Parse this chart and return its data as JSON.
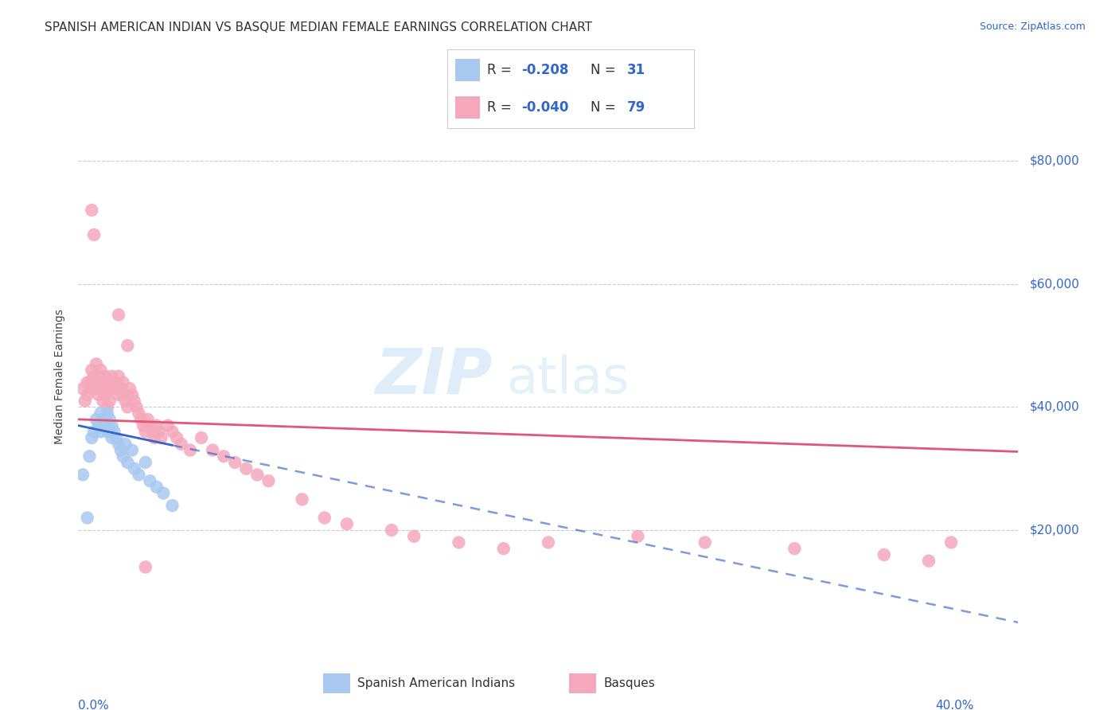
{
  "title": "SPANISH AMERICAN INDIAN VS BASQUE MEDIAN FEMALE EARNINGS CORRELATION CHART",
  "source": "Source: ZipAtlas.com",
  "ylabel": "Median Female Earnings",
  "yaxis_labels": [
    "$80,000",
    "$60,000",
    "$40,000",
    "$20,000"
  ],
  "yaxis_values": [
    80000,
    60000,
    40000,
    20000
  ],
  "xlim": [
    0.0,
    0.42
  ],
  "ylim": [
    0,
    90000
  ],
  "watermark_zip": "ZIP",
  "watermark_atlas": "atlas",
  "legend_r1_label": "R = ",
  "legend_r1_val": "-0.208",
  "legend_n1_label": "N = ",
  "legend_n1_val": "31",
  "legend_r2_label": "R = ",
  "legend_r2_val": "-0.040",
  "legend_n2_label": "N = ",
  "legend_n2_val": "79",
  "xtick_left_label": "0.0%",
  "xtick_right_label": "40.0%",
  "bottom_label1": "Spanish American Indians",
  "bottom_label2": "Basques",
  "blue_scatter_x": [
    0.002,
    0.004,
    0.005,
    0.006,
    0.007,
    0.008,
    0.009,
    0.01,
    0.01,
    0.011,
    0.012,
    0.013,
    0.013,
    0.014,
    0.015,
    0.015,
    0.016,
    0.017,
    0.018,
    0.019,
    0.02,
    0.021,
    0.022,
    0.024,
    0.025,
    0.027,
    0.03,
    0.032,
    0.035,
    0.038,
    0.042
  ],
  "blue_scatter_y": [
    29000,
    22000,
    32000,
    35000,
    36000,
    38000,
    37000,
    39000,
    36000,
    38000,
    37000,
    39000,
    36000,
    38000,
    37000,
    35000,
    36000,
    35000,
    34000,
    33000,
    32000,
    34000,
    31000,
    33000,
    30000,
    29000,
    31000,
    28000,
    27000,
    26000,
    24000
  ],
  "pink_scatter_x": [
    0.002,
    0.003,
    0.004,
    0.004,
    0.005,
    0.006,
    0.006,
    0.007,
    0.008,
    0.008,
    0.009,
    0.009,
    0.01,
    0.01,
    0.011,
    0.011,
    0.012,
    0.012,
    0.013,
    0.013,
    0.014,
    0.014,
    0.015,
    0.015,
    0.016,
    0.017,
    0.018,
    0.018,
    0.019,
    0.02,
    0.02,
    0.021,
    0.022,
    0.023,
    0.024,
    0.025,
    0.026,
    0.027,
    0.028,
    0.029,
    0.03,
    0.031,
    0.032,
    0.033,
    0.034,
    0.035,
    0.036,
    0.037,
    0.04,
    0.042,
    0.044,
    0.046,
    0.05,
    0.055,
    0.06,
    0.065,
    0.07,
    0.075,
    0.08,
    0.085,
    0.1,
    0.11,
    0.12,
    0.14,
    0.15,
    0.17,
    0.19,
    0.21,
    0.25,
    0.28,
    0.32,
    0.36,
    0.38,
    0.39,
    0.006,
    0.007,
    0.018,
    0.022,
    0.03
  ],
  "pink_scatter_y": [
    43000,
    41000,
    44000,
    42000,
    44000,
    43000,
    46000,
    45000,
    47000,
    43000,
    45000,
    42000,
    46000,
    44000,
    43000,
    41000,
    45000,
    42000,
    44000,
    40000,
    43000,
    41000,
    45000,
    43000,
    44000,
    43000,
    42000,
    45000,
    43000,
    44000,
    42000,
    41000,
    40000,
    43000,
    42000,
    41000,
    40000,
    39000,
    38000,
    37000,
    36000,
    38000,
    37000,
    36000,
    35000,
    37000,
    36000,
    35000,
    37000,
    36000,
    35000,
    34000,
    33000,
    35000,
    33000,
    32000,
    31000,
    30000,
    29000,
    28000,
    25000,
    22000,
    21000,
    20000,
    19000,
    18000,
    17000,
    18000,
    19000,
    18000,
    17000,
    16000,
    15000,
    18000,
    72000,
    68000,
    55000,
    50000,
    14000
  ],
  "blue_color": "#A8C8F0",
  "pink_color": "#F5A8BC",
  "blue_line_color": "#3366CC",
  "pink_line_color": "#E05878",
  "grid_color": "#CCCCCC",
  "background_color": "#FFFFFF",
  "title_fontsize": 11,
  "source_fontsize": 9,
  "tick_fontsize": 11,
  "legend_fontsize": 12
}
